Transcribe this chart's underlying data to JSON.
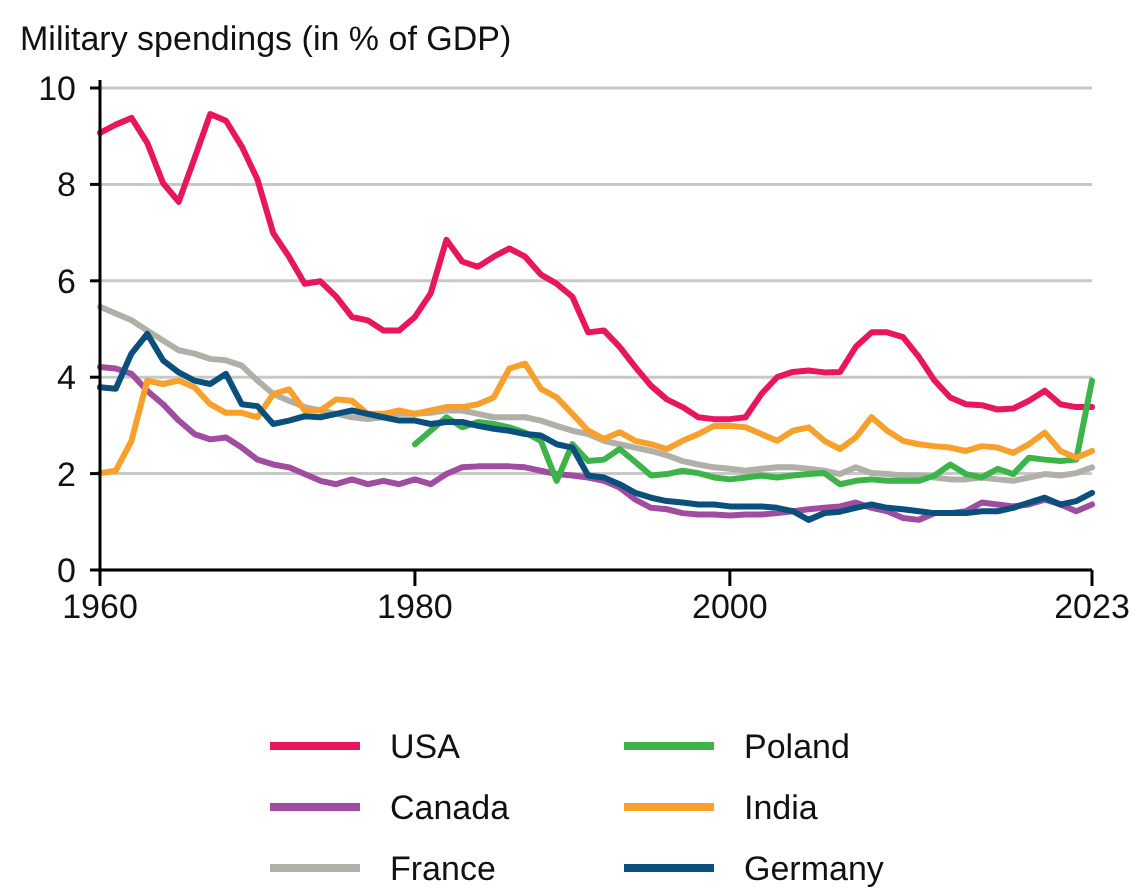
{
  "chart_data": {
    "type": "line",
    "title": "Military spendings (in % of GDP)",
    "x": [
      1960,
      1961,
      1962,
      1963,
      1964,
      1965,
      1966,
      1967,
      1968,
      1969,
      1970,
      1971,
      1972,
      1973,
      1974,
      1975,
      1976,
      1977,
      1978,
      1979,
      1980,
      1981,
      1982,
      1983,
      1984,
      1985,
      1986,
      1987,
      1988,
      1989,
      1990,
      1991,
      1992,
      1993,
      1994,
      1995,
      1996,
      1997,
      1998,
      1999,
      2000,
      2001,
      2002,
      2003,
      2004,
      2005,
      2006,
      2007,
      2008,
      2009,
      2010,
      2011,
      2012,
      2013,
      2014,
      2015,
      2016,
      2017,
      2018,
      2019,
      2020,
      2021,
      2022,
      2023
    ],
    "series": [
      {
        "name": "USA",
        "color": "#e8175d",
        "values": [
          9.07,
          9.24,
          9.38,
          8.86,
          8.03,
          7.64,
          8.54,
          9.46,
          9.32,
          8.79,
          8.1,
          6.99,
          6.5,
          5.94,
          5.99,
          5.67,
          5.25,
          5.18,
          4.97,
          4.97,
          5.25,
          5.74,
          6.85,
          6.4,
          6.29,
          6.5,
          6.67,
          6.5,
          6.13,
          5.94,
          5.67,
          4.93,
          4.97,
          4.63,
          4.21,
          3.82,
          3.54,
          3.38,
          3.17,
          3.13,
          3.13,
          3.17,
          3.65,
          4.0,
          4.11,
          4.14,
          4.1,
          4.11,
          4.63,
          4.93,
          4.93,
          4.83,
          4.42,
          3.93,
          3.58,
          3.44,
          3.42,
          3.33,
          3.35,
          3.51,
          3.72,
          3.44,
          3.38,
          3.38
        ]
      },
      {
        "name": "Canada",
        "color": "#a04ca0",
        "values": [
          4.21,
          4.18,
          4.07,
          3.72,
          3.44,
          3.1,
          2.82,
          2.71,
          2.75,
          2.54,
          2.29,
          2.19,
          2.13,
          1.99,
          1.85,
          1.78,
          1.88,
          1.78,
          1.85,
          1.78,
          1.88,
          1.78,
          1.99,
          2.13,
          2.15,
          2.15,
          2.15,
          2.13,
          2.06,
          1.99,
          1.96,
          1.92,
          1.85,
          1.71,
          1.46,
          1.29,
          1.26,
          1.18,
          1.15,
          1.15,
          1.13,
          1.15,
          1.15,
          1.18,
          1.22,
          1.26,
          1.29,
          1.32,
          1.4,
          1.29,
          1.22,
          1.08,
          1.04,
          1.18,
          1.18,
          1.22,
          1.4,
          1.36,
          1.32,
          1.36,
          1.46,
          1.36,
          1.22,
          1.36
        ]
      },
      {
        "name": "France",
        "color": "#b0b0a8",
        "values": [
          5.46,
          5.32,
          5.18,
          4.97,
          4.76,
          4.56,
          4.49,
          4.38,
          4.35,
          4.24,
          3.93,
          3.65,
          3.51,
          3.38,
          3.31,
          3.24,
          3.17,
          3.13,
          3.17,
          3.24,
          3.24,
          3.26,
          3.31,
          3.31,
          3.24,
          3.17,
          3.17,
          3.17,
          3.1,
          2.99,
          2.89,
          2.82,
          2.68,
          2.61,
          2.54,
          2.47,
          2.38,
          2.26,
          2.19,
          2.13,
          2.1,
          2.06,
          2.1,
          2.13,
          2.13,
          2.1,
          2.06,
          1.99,
          2.13,
          2.01,
          1.99,
          1.96,
          1.96,
          1.92,
          1.88,
          1.88,
          1.92,
          1.88,
          1.85,
          1.92,
          1.99,
          1.96,
          2.01,
          2.13
        ]
      },
      {
        "name": "Poland",
        "color": "#3cb44a",
        "x": [
          1980,
          1981,
          1982,
          1983,
          1984,
          1985,
          1986,
          1987,
          1988,
          1989,
          1990,
          1991,
          1992,
          1993,
          1994,
          1995,
          1996,
          1997,
          1998,
          1999,
          2000,
          2001,
          2002,
          2003,
          2004,
          2005,
          2006,
          2007,
          2008,
          2009,
          2010,
          2011,
          2012,
          2013,
          2014,
          2015,
          2016,
          2017,
          2018,
          2019,
          2020,
          2021,
          2022,
          2023
        ],
        "values": [
          2.61,
          2.89,
          3.17,
          2.96,
          3.07,
          3.03,
          2.96,
          2.85,
          2.68,
          1.85,
          2.61,
          2.26,
          2.29,
          2.51,
          2.24,
          1.96,
          1.99,
          2.06,
          2.01,
          1.92,
          1.88,
          1.92,
          1.96,
          1.92,
          1.96,
          1.99,
          2.01,
          1.78,
          1.85,
          1.88,
          1.85,
          1.85,
          1.85,
          1.96,
          2.19,
          1.99,
          1.92,
          2.1,
          1.99,
          2.33,
          2.29,
          2.26,
          2.29,
          3.93
        ]
      },
      {
        "name": "India",
        "color": "#f7a02c",
        "values": [
          2.01,
          2.06,
          2.68,
          3.93,
          3.86,
          3.93,
          3.79,
          3.44,
          3.26,
          3.26,
          3.17,
          3.65,
          3.75,
          3.31,
          3.31,
          3.54,
          3.51,
          3.24,
          3.24,
          3.31,
          3.24,
          3.31,
          3.38,
          3.38,
          3.44,
          3.58,
          4.18,
          4.28,
          3.76,
          3.58,
          3.24,
          2.89,
          2.72,
          2.86,
          2.68,
          2.61,
          2.51,
          2.68,
          2.82,
          2.99,
          2.99,
          2.96,
          2.82,
          2.68,
          2.89,
          2.96,
          2.68,
          2.51,
          2.75,
          3.17,
          2.89,
          2.68,
          2.61,
          2.57,
          2.54,
          2.47,
          2.57,
          2.54,
          2.43,
          2.61,
          2.85,
          2.47,
          2.33,
          2.47
        ]
      },
      {
        "name": "Germany",
        "color": "#0b4f7c",
        "values": [
          3.79,
          3.76,
          4.49,
          4.9,
          4.35,
          4.1,
          3.93,
          3.86,
          4.07,
          3.44,
          3.4,
          3.03,
          3.1,
          3.19,
          3.17,
          3.24,
          3.31,
          3.24,
          3.17,
          3.1,
          3.1,
          3.03,
          3.07,
          3.07,
          2.99,
          2.93,
          2.89,
          2.82,
          2.79,
          2.61,
          2.54,
          1.96,
          1.92,
          1.78,
          1.6,
          1.5,
          1.43,
          1.4,
          1.36,
          1.36,
          1.32,
          1.32,
          1.32,
          1.29,
          1.22,
          1.04,
          1.18,
          1.21,
          1.29,
          1.36,
          1.29,
          1.26,
          1.22,
          1.18,
          1.18,
          1.18,
          1.22,
          1.22,
          1.29,
          1.4,
          1.5,
          1.36,
          1.43,
          1.6
        ]
      }
    ],
    "xlim": [
      1960,
      2023
    ],
    "xticks": [
      1960,
      1980,
      2000,
      2023
    ],
    "ylim": [
      0,
      10
    ],
    "yticks": [
      0,
      2,
      4,
      6,
      8,
      10
    ],
    "grid": "y",
    "legend": "bottom",
    "marker": "none",
    "line_style": "solid"
  }
}
